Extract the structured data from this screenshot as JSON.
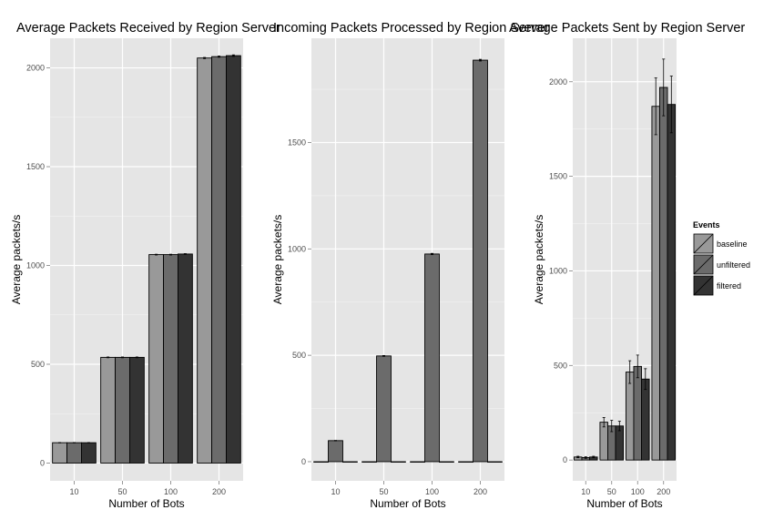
{
  "chart_data": [
    {
      "type": "bar",
      "title": "Average Packets Received by Region Server",
      "xlabel": "Number of Bots",
      "ylabel": "Average packets/s",
      "categories": [
        "10",
        "50",
        "100",
        "200"
      ],
      "ylim": [
        -90,
        2150
      ],
      "yticks": [
        0,
        500,
        1000,
        1500,
        2000
      ],
      "grid": true,
      "series": [
        {
          "name": "baseline",
          "values": [
            103,
            535,
            1055,
            2050
          ],
          "errors": [
            1,
            2,
            2,
            3
          ]
        },
        {
          "name": "unfiltered",
          "values": [
            103,
            535,
            1055,
            2057
          ],
          "errors": [
            1,
            2,
            2,
            3
          ]
        },
        {
          "name": "filtered",
          "values": [
            103,
            535,
            1058,
            2062
          ],
          "errors": [
            1,
            2,
            2,
            4
          ]
        }
      ]
    },
    {
      "type": "bar",
      "title": "Incoming Packets Processed by Region Server",
      "xlabel": "Number of Bots",
      "ylabel": "Average packets/s",
      "categories": [
        "10",
        "50",
        "100",
        "200"
      ],
      "ylim": [
        -90,
        1990
      ],
      "yticks": [
        0,
        500,
        1000,
        1500
      ],
      "grid": true,
      "series": [
        {
          "name": "baseline",
          "values": [
            0,
            0,
            0,
            0
          ],
          "errors": [
            0,
            0,
            0,
            0
          ]
        },
        {
          "name": "unfiltered",
          "values": [
            99,
            497,
            976,
            1887
          ],
          "errors": [
            1,
            2,
            3,
            4
          ]
        },
        {
          "name": "filtered",
          "values": [
            0,
            0,
            0,
            0
          ],
          "errors": [
            0,
            0,
            0,
            0
          ]
        }
      ]
    },
    {
      "type": "bar",
      "title": "Average Packets Sent by Region Server",
      "xlabel": "Number of Bots",
      "ylabel": "Average packets/s",
      "categories": [
        "10",
        "50",
        "100",
        "200"
      ],
      "ylim": [
        -110,
        2230
      ],
      "yticks": [
        0,
        500,
        1000,
        1500,
        2000
      ],
      "grid": true,
      "series": [
        {
          "name": "baseline",
          "values": [
            16,
            200,
            465,
            1870
          ],
          "errors": [
            4,
            25,
            60,
            150
          ]
        },
        {
          "name": "unfiltered",
          "values": [
            13,
            180,
            495,
            1970
          ],
          "errors": [
            4,
            30,
            60,
            150
          ]
        },
        {
          "name": "filtered",
          "values": [
            16,
            180,
            428,
            1880
          ],
          "errors": [
            4,
            25,
            55,
            150
          ]
        }
      ]
    }
  ],
  "legend": {
    "title": "Events",
    "position": "right",
    "items": [
      {
        "label": "baseline",
        "color": "#999999"
      },
      {
        "label": "unfiltered",
        "color": "#6b6b6b"
      },
      {
        "label": "filtered",
        "color": "#333333"
      }
    ]
  },
  "colors": {
    "panel_background": "#e5e5e5",
    "grid_major": "#ffffff",
    "grid_minor": "#f2f2f2",
    "bar_outline": "#000000"
  }
}
